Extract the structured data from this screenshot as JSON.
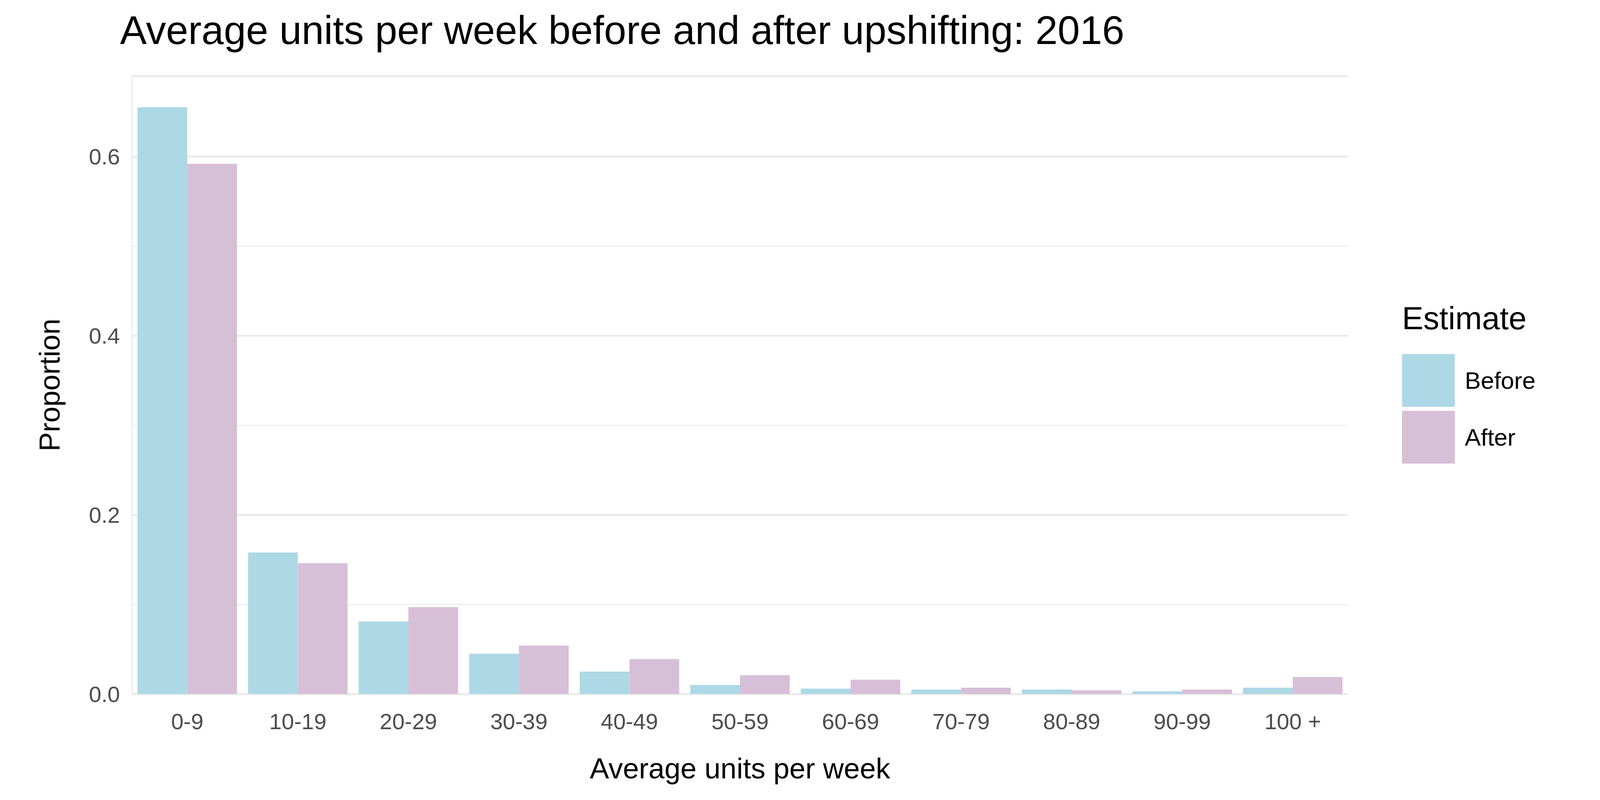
{
  "chart_data": {
    "type": "bar",
    "title": "Average units per week before and after upshifting: 2016",
    "x_label": "Average units per week",
    "y_label": "Proportion",
    "legend_title": "Estimate",
    "categories": [
      "0-9",
      "10-19",
      "20-29",
      "30-39",
      "40-49",
      "50-59",
      "60-69",
      "70-79",
      "80-89",
      "90-99",
      "100 +"
    ],
    "series": [
      {
        "name": "Before",
        "color": "#ADD8E6",
        "values": [
          0.655,
          0.158,
          0.081,
          0.045,
          0.025,
          0.01,
          0.006,
          0.005,
          0.005,
          0.003,
          0.007
        ]
      },
      {
        "name": "After",
        "color": "#D8BFD8",
        "values": [
          0.592,
          0.146,
          0.097,
          0.054,
          0.039,
          0.021,
          0.016,
          0.007,
          0.004,
          0.005,
          0.019
        ]
      }
    ],
    "ylim": [
      0,
      0.69
    ],
    "yticks": [
      {
        "value": 0,
        "label": "0.0"
      },
      0.2,
      0.4,
      0.6
    ],
    "grid": true,
    "legend": "right"
  }
}
